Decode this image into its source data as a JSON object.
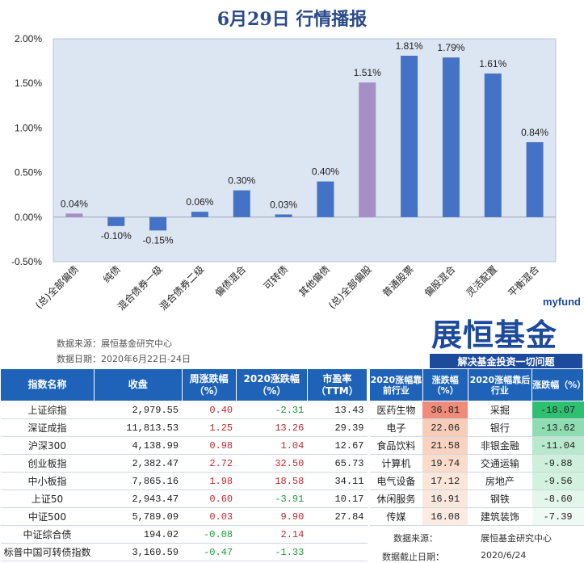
{
  "title": "6月29日  行情播报",
  "chart_data": {
    "type": "bar",
    "title": "",
    "categories": [
      "(总)全部偏债",
      "纯债",
      "混合债券一级",
      "混合债券二级",
      "偏债混合",
      "可转债",
      "其他偏债",
      "(总)全部偏股",
      "普通股票",
      "偏股混合",
      "灵活配置",
      "平衡混合"
    ],
    "values": [
      0.04,
      -0.1,
      -0.15,
      0.06,
      0.3,
      0.03,
      0.4,
      1.51,
      1.81,
      1.79,
      1.61,
      0.84
    ],
    "value_labels": [
      "0.04%",
      "-0.10%",
      "-0.15%",
      "0.06%",
      "0.30%",
      "0.03%",
      "0.40%",
      "1.51%",
      "1.81%",
      "1.79%",
      "1.61%",
      "0.84%"
    ],
    "ylim": [
      -0.5,
      2.0
    ],
    "yticks": [
      -0.5,
      0.0,
      0.5,
      1.0,
      1.5,
      2.0
    ],
    "ytick_labels": [
      "-0.50%",
      "0.00%",
      "0.50%",
      "1.00%",
      "1.50%",
      "2.00%"
    ],
    "grid": false,
    "colors": {
      "bar": "#4472c4",
      "highlight": "#a58fc4",
      "background": "#dce5f2"
    },
    "highlight_indices": [
      0,
      7
    ]
  },
  "logo": {
    "en": "myfund",
    "cn": "展恒基金",
    "slogan": "解决基金投资一切问题"
  },
  "notes": {
    "source": "数据来源：展恒基金研究中心",
    "date": "数据日期：2020年6月22日-24日"
  },
  "index_table": {
    "headers": [
      "指数名称",
      "收盘",
      "周涨跌幅（%）",
      "2020涨跌幅（%）",
      "市盈率（TTM）"
    ],
    "rows": [
      {
        "name": "上证综指",
        "close": "2,979.55",
        "week": "0.40",
        "ytd": "-2.31",
        "pe": "13.43",
        "week_dir": "up",
        "ytd_dir": "down"
      },
      {
        "name": "深证成指",
        "close": "11,813.53",
        "week": "1.25",
        "ytd": "13.26",
        "pe": "29.39",
        "week_dir": "up",
        "ytd_dir": "up"
      },
      {
        "name": "沪深300",
        "close": "4,138.99",
        "week": "0.98",
        "ytd": "1.04",
        "pe": "12.67",
        "week_dir": "up",
        "ytd_dir": "up"
      },
      {
        "name": "创业板指",
        "close": "2,382.47",
        "week": "2.72",
        "ytd": "32.50",
        "pe": "65.73",
        "week_dir": "up",
        "ytd_dir": "up"
      },
      {
        "name": "中小板指",
        "close": "7,865.16",
        "week": "1.98",
        "ytd": "18.58",
        "pe": "34.11",
        "week_dir": "up",
        "ytd_dir": "up"
      },
      {
        "name": "上证50",
        "close": "2,943.47",
        "week": "0.60",
        "ytd": "-3.91",
        "pe": "10.17",
        "week_dir": "up",
        "ytd_dir": "down"
      },
      {
        "name": "中证500",
        "close": "5,789.09",
        "week": "0.03",
        "ytd": "9.90",
        "pe": "27.84",
        "week_dir": "up",
        "ytd_dir": "up"
      },
      {
        "name": "中证综合债",
        "close": "194.02",
        "week": "-0.08",
        "ytd": "2.14",
        "pe": "",
        "week_dir": "down",
        "ytd_dir": "up"
      },
      {
        "name": "标普中国可转债指数",
        "close": "3,160.59",
        "week": "-0.47",
        "ytd": "-1.33",
        "pe": "",
        "week_dir": "down",
        "ytd_dir": "down"
      }
    ]
  },
  "sector_table": {
    "headers": [
      "2020涨幅靠前行业",
      "涨跌幅（%）",
      "2020涨幅靠后行业",
      "涨跌幅（%）"
    ],
    "rows": [
      {
        "top": "医药生物",
        "top_val": "36.81",
        "top_bg": "#ef8b7a",
        "bot": "采掘",
        "bot_val": "-18.07",
        "bot_bg": "#2fbf71"
      },
      {
        "top": "电子",
        "top_val": "22.06",
        "top_bg": "#f7cdb9",
        "bot": "银行",
        "bot_val": "-13.62",
        "bot_bg": "#8fdcb2"
      },
      {
        "top": "食品饮料",
        "top_val": "21.58",
        "top_bg": "#f8d3c1",
        "bot": "非银金融",
        "bot_val": "-11.04",
        "bot_bg": "#b9e9cd"
      },
      {
        "top": "计算机",
        "top_val": "19.74",
        "top_bg": "#f9dccb",
        "bot": "交通运输",
        "bot_val": "-9.88",
        "bot_bg": "#cdefdb"
      },
      {
        "top": "电气设备",
        "top_val": "17.12",
        "top_bg": "#fbe6da",
        "bot": "房地产",
        "bot_val": "-9.56",
        "bot_bg": "#d2f1df"
      },
      {
        "top": "休闲服务",
        "top_val": "16.91",
        "top_bg": "#fbe8dd",
        "bot": "钢铁",
        "bot_val": "-8.60",
        "bot_bg": "#e2f6ea"
      },
      {
        "top": "传媒",
        "top_val": "16.08",
        "top_bg": "#fcebe2",
        "bot": "建筑装饰",
        "bot_val": "-7.39",
        "bot_bg": "#f0faf4"
      }
    ]
  },
  "footer": {
    "src_label": "数据来源：",
    "src_value": "展恒基金研究中心",
    "date_label": "数据截止日期：",
    "date_value": "2020/6/24"
  }
}
